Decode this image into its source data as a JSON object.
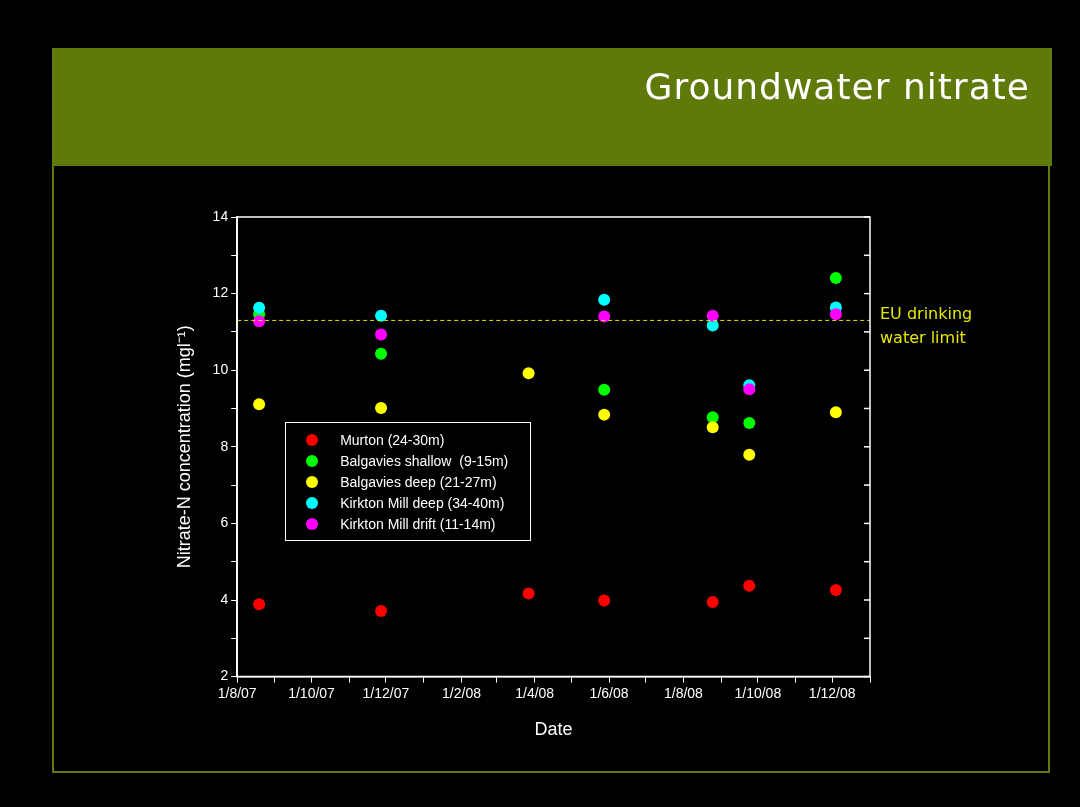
{
  "chart_data": {
    "type": "scatter",
    "title": "Groundwater nitrate",
    "xlabel": "Date",
    "ylabel": "Nitrate-N concentration (mgl⁻¹)",
    "x": [
      "2007-08-19",
      "2007-11-27",
      "2008-03-27",
      "2008-05-28",
      "2008-08-25",
      "2008-09-24",
      "2008-12-04"
    ],
    "series": [
      {
        "name": "Murton (24-30m)",
        "color": "#ff0000",
        "values": [
          3.89,
          3.71,
          4.17,
          3.99,
          3.95,
          4.37,
          4.26
        ]
      },
      {
        "name": "Balgavies shallow  (9-15m)",
        "color": "#00ff00",
        "values": [
          11.46,
          10.43,
          null,
          9.49,
          8.77,
          8.62,
          12.41
        ]
      },
      {
        "name": "Balgavies deep (21-27m)",
        "color": "#ffff00",
        "values": [
          9.11,
          9.01,
          9.92,
          8.84,
          8.51,
          7.79,
          8.9
        ]
      },
      {
        "name": "Kirkton Mill deep (34-40m)",
        "color": "#00ffff",
        "values": [
          11.63,
          11.42,
          null,
          11.84,
          11.17,
          9.61,
          11.64
        ]
      },
      {
        "name": "Kirkton Mill drift (11-14m)",
        "color": "#ff00ff",
        "values": [
          11.28,
          10.93,
          null,
          11.4,
          11.42,
          9.5,
          11.46
        ]
      }
    ],
    "xlim": [
      "2007-08-01",
      "2009-01-01"
    ],
    "xticks": [
      {
        "value": "2007-08-01",
        "label": "1/8/07"
      },
      {
        "value": "2007-09-01",
        "label": null
      },
      {
        "value": "2007-10-01",
        "label": "1/10/07"
      },
      {
        "value": "2007-11-01",
        "label": null
      },
      {
        "value": "2007-12-01",
        "label": "1/12/07"
      },
      {
        "value": "2008-01-01",
        "label": null
      },
      {
        "value": "2008-02-01",
        "label": "1/2/08"
      },
      {
        "value": "2008-03-01",
        "label": null
      },
      {
        "value": "2008-04-01",
        "label": "1/4/08"
      },
      {
        "value": "2008-05-01",
        "label": null
      },
      {
        "value": "2008-06-01",
        "label": "1/6/08"
      },
      {
        "value": "2008-07-01",
        "label": null
      },
      {
        "value": "2008-08-01",
        "label": "1/8/08"
      },
      {
        "value": "2008-09-01",
        "label": null
      },
      {
        "value": "2008-10-01",
        "label": "1/10/08"
      },
      {
        "value": "2008-11-01",
        "label": null
      },
      {
        "value": "2008-12-01",
        "label": "1/12/08"
      },
      {
        "value": "2009-01-01",
        "label": null
      }
    ],
    "ylim": [
      2,
      14
    ],
    "yticks": [
      2,
      {
        "value": 3,
        "label": null
      },
      4,
      {
        "value": 5,
        "label": null
      },
      6,
      {
        "value": 7,
        "label": null
      },
      8,
      {
        "value": 9,
        "label": null
      },
      10,
      {
        "value": 11,
        "label": null
      },
      12,
      {
        "value": 13,
        "label": null
      },
      14
    ],
    "ref_lines": [
      {
        "axis": "y",
        "value": 11.3,
        "label": "EU drinking water limit",
        "color": "#e6e600",
        "line_style": "dashed"
      }
    ],
    "marker": "circle",
    "grid": false,
    "legend": "left"
  }
}
